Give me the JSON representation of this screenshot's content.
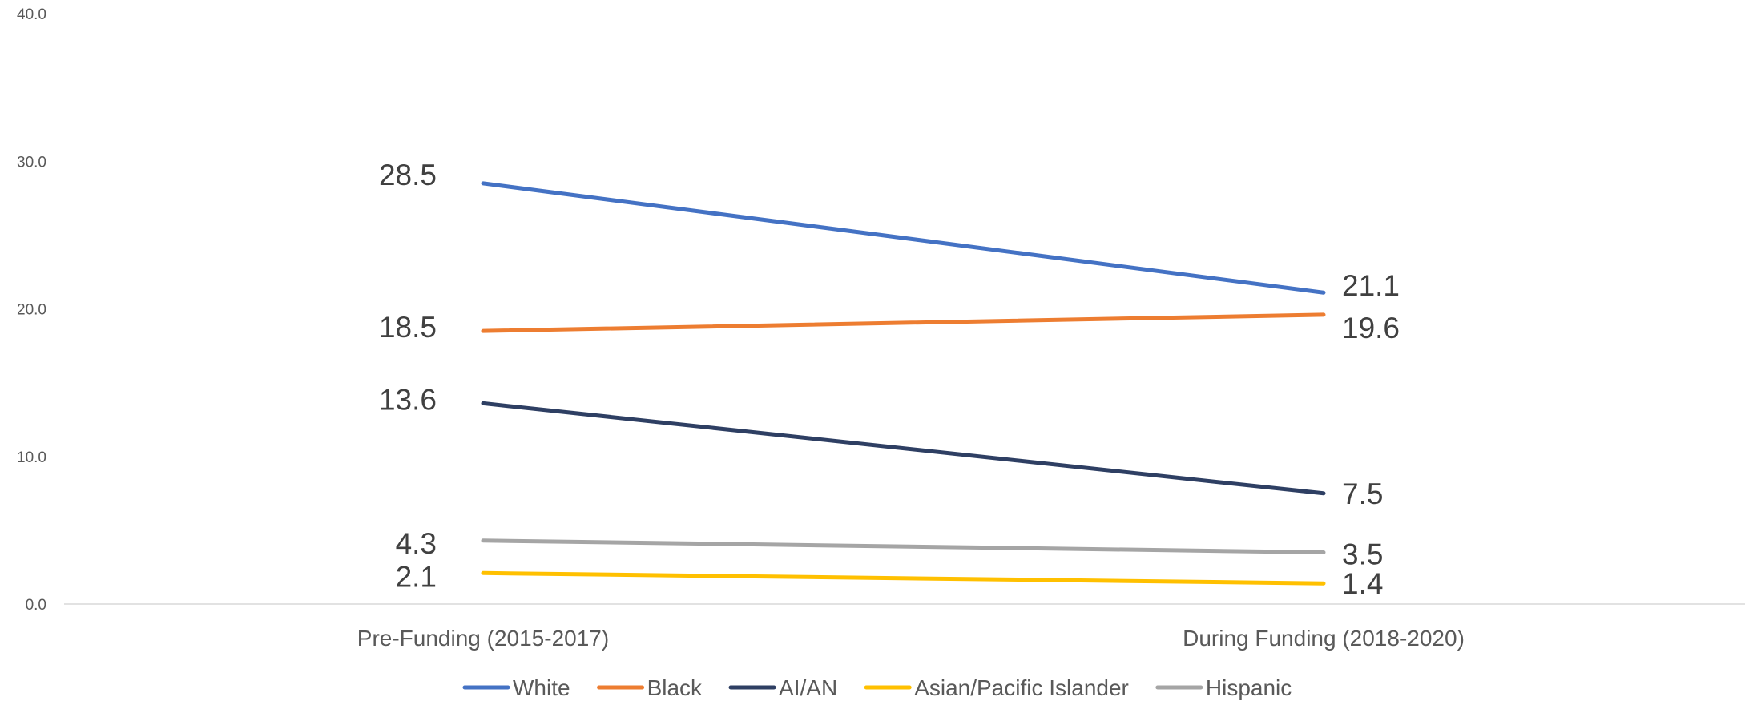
{
  "chart_data": {
    "type": "line",
    "title": "",
    "xlabel": "",
    "ylabel": "",
    "categories": [
      "Pre-Funding (2015-2017)",
      "During Funding (2018-2020)"
    ],
    "ylim": [
      0,
      40
    ],
    "yticks": [
      "0.0",
      "10.0",
      "20.0",
      "30.0",
      "40.0"
    ],
    "grid": false,
    "legend_position": "bottom",
    "series": [
      {
        "name": "White",
        "color": "#4472C4",
        "values": [
          28.5,
          21.1
        ],
        "labels": [
          "28.5",
          "21.1"
        ]
      },
      {
        "name": "Black",
        "color": "#ED7D31",
        "values": [
          18.5,
          19.6
        ],
        "labels": [
          "18.5",
          "19.6"
        ]
      },
      {
        "name": "AI/AN",
        "color": "#2E3F63",
        "values": [
          13.6,
          7.5
        ],
        "labels": [
          "13.6",
          "7.5"
        ]
      },
      {
        "name": "Asian/Pacific Islander",
        "color": "#FFC000",
        "values": [
          2.1,
          1.4
        ],
        "labels": [
          "2.1",
          "1.4"
        ]
      },
      {
        "name": "Hispanic",
        "color": "#A5A5A5",
        "values": [
          4.3,
          3.5
        ],
        "labels": [
          "4.3",
          "3.5"
        ]
      }
    ]
  }
}
